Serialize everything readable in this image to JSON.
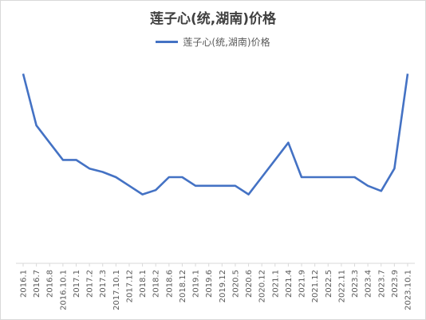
{
  "chart_data": {
    "type": "line",
    "title": "莲子心(统,湖南)价格",
    "legend_position": "top-center",
    "grid": false,
    "y_axis_labels_shown": false,
    "categories": [
      "2016.1",
      "2016.7",
      "2016.8",
      "2016.10.1",
      "2017.1",
      "2017.2",
      "2017.3",
      "2017.10.1",
      "2017.12",
      "2018.1",
      "2018.2",
      "2018.6",
      "2018.12",
      "2019.1",
      "2019.6",
      "2019.12",
      "2020.5",
      "2020.6",
      "2020.12",
      "2021.1",
      "2021.4",
      "2021.9",
      "2021.12",
      "2022.5",
      "2022.11",
      "2023.3",
      "2023.4",
      "2023.7",
      "2023.9",
      "2023.10.1"
    ],
    "series": [
      {
        "name": "莲子心(统,湖南)价格",
        "color": "#4472c4",
        "values": [
          220,
          160,
          140,
          120,
          120,
          110,
          106,
          100,
          90,
          80,
          85,
          100,
          100,
          90,
          90,
          90,
          90,
          80,
          100,
          120,
          140,
          100,
          100,
          100,
          100,
          100,
          90,
          84,
          110,
          220
        ]
      }
    ],
    "ylim": [
      0,
      250
    ]
  }
}
